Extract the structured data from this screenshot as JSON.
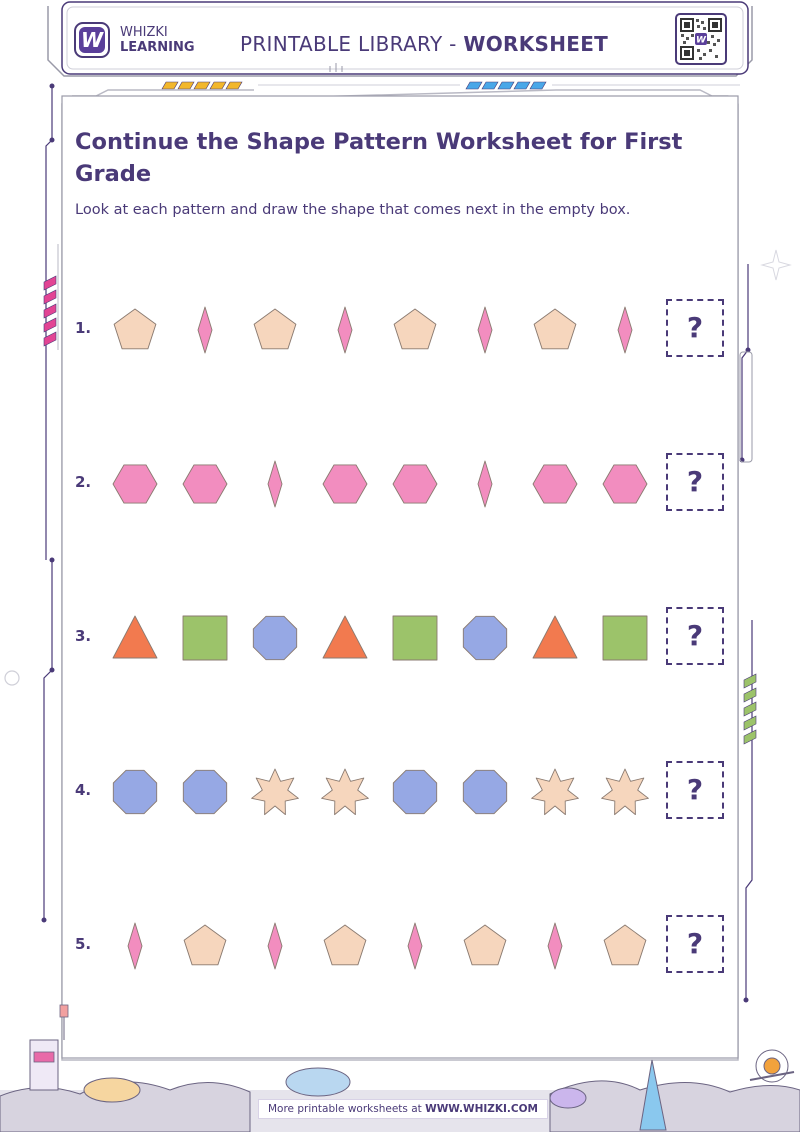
{
  "header": {
    "logo_mark": "W",
    "logo_line1": "WHIZKI",
    "logo_line2": "LEARNING",
    "library_label": "PRINTABLE LIBRARY - ",
    "library_kind": "WORKSHEET",
    "qr_icon": "qr-code-icon"
  },
  "worksheet": {
    "title": "Continue the Shape Pattern Worksheet for First Grade",
    "instructions": "Look at each pattern and draw the shape that comes next in the empty box."
  },
  "colors": {
    "ink": "#4a3a78",
    "peach": "#f6d6bd",
    "pink": "#f28dbf",
    "orange": "#f27a4f",
    "green": "#9cc36a",
    "blue": "#96a8e4",
    "frame_gray": "#b9b9c4"
  },
  "answer_mark": "?",
  "rows": [
    {
      "number": "1.",
      "shapes": [
        "pentagon",
        "diamond",
        "pentagon",
        "diamond",
        "pentagon",
        "diamond",
        "pentagon",
        "diamond"
      ]
    },
    {
      "number": "2.",
      "shapes": [
        "hexagon",
        "hexagon",
        "diamond",
        "hexagon",
        "hexagon",
        "diamond",
        "hexagon",
        "hexagon"
      ]
    },
    {
      "number": "3.",
      "shapes": [
        "triangle",
        "square",
        "octagon",
        "triangle",
        "square",
        "octagon",
        "triangle",
        "square"
      ]
    },
    {
      "number": "4.",
      "shapes": [
        "octagon",
        "octagon",
        "star",
        "star",
        "octagon",
        "octagon",
        "star",
        "star"
      ]
    },
    {
      "number": "5.",
      "shapes": [
        "diamond",
        "pentagon",
        "diamond",
        "pentagon",
        "diamond",
        "pentagon",
        "diamond",
        "pentagon"
      ]
    }
  ],
  "footer": {
    "text": "More printable worksheets at ",
    "site": "WWW.WHIZKI.COM"
  }
}
